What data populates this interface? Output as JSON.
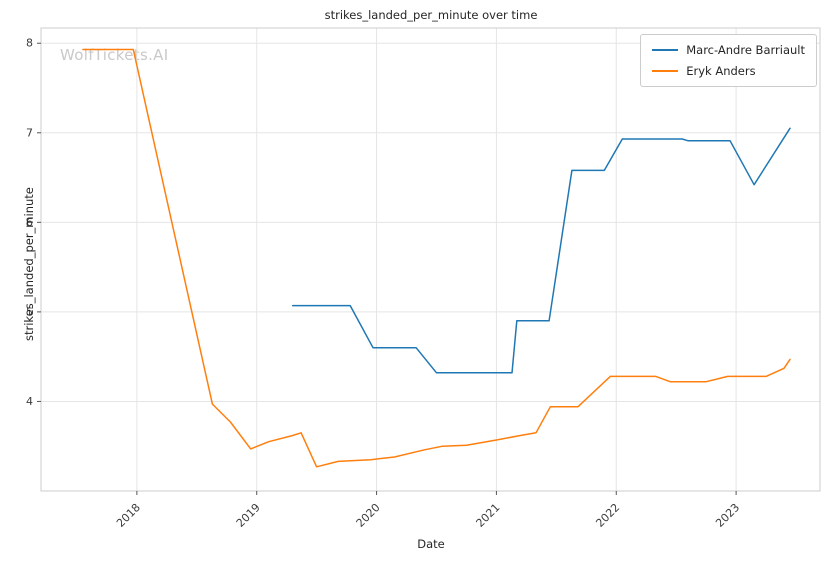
{
  "watermark": "WolfTickets.AI",
  "colors": {
    "grid": "#e5e5e5",
    "spine": "#cccccc",
    "tick": "#555555",
    "tick_label": "#3b3b3b"
  },
  "chart_data": {
    "type": "line",
    "title": "strikes_landed_per_minute over time",
    "xlabel": "Date",
    "ylabel": "strikes_landed_per_minute",
    "grid": true,
    "legend_position": "upper right",
    "xlim": [
      2017.2,
      2023.7
    ],
    "ylim": [
      3.0,
      8.17
    ],
    "xticks": [
      {
        "value": 2018,
        "label": "2018"
      },
      {
        "value": 2019,
        "label": "2019"
      },
      {
        "value": 2020,
        "label": "2020"
      },
      {
        "value": 2021,
        "label": "2021"
      },
      {
        "value": 2022,
        "label": "2022"
      },
      {
        "value": 2023,
        "label": "2023"
      }
    ],
    "yticks": [
      {
        "value": 4,
        "label": "4"
      },
      {
        "value": 5,
        "label": "5"
      },
      {
        "value": 6,
        "label": "6"
      },
      {
        "value": 7,
        "label": "7"
      },
      {
        "value": 8,
        "label": "8"
      }
    ],
    "series": [
      {
        "name": "Marc-Andre Barriault",
        "color": "#1f77b4",
        "points": [
          [
            2019.3,
            5.07
          ],
          [
            2019.78,
            5.07
          ],
          [
            2019.97,
            4.6
          ],
          [
            2020.33,
            4.6
          ],
          [
            2020.5,
            4.32
          ],
          [
            2021.13,
            4.32
          ],
          [
            2021.17,
            4.9
          ],
          [
            2021.44,
            4.9
          ],
          [
            2021.63,
            6.58
          ],
          [
            2021.9,
            6.58
          ],
          [
            2022.05,
            6.93
          ],
          [
            2022.55,
            6.93
          ],
          [
            2022.6,
            6.91
          ],
          [
            2022.95,
            6.91
          ],
          [
            2023.15,
            6.42
          ],
          [
            2023.45,
            7.05
          ]
        ]
      },
      {
        "name": "Eryk Anders",
        "color": "#ff7f0e",
        "points": [
          [
            2017.55,
            7.93
          ],
          [
            2017.97,
            7.93
          ],
          [
            2018.63,
            3.97
          ],
          [
            2018.78,
            3.77
          ],
          [
            2018.95,
            3.47
          ],
          [
            2019.1,
            3.55
          ],
          [
            2019.3,
            3.62
          ],
          [
            2019.37,
            3.65
          ],
          [
            2019.5,
            3.27
          ],
          [
            2019.68,
            3.33
          ],
          [
            2019.95,
            3.35
          ],
          [
            2020.15,
            3.38
          ],
          [
            2020.4,
            3.46
          ],
          [
            2020.55,
            3.5
          ],
          [
            2020.75,
            3.51
          ],
          [
            2021.0,
            3.57
          ],
          [
            2021.2,
            3.62
          ],
          [
            2021.33,
            3.65
          ],
          [
            2021.45,
            3.94
          ],
          [
            2021.68,
            3.94
          ],
          [
            2021.95,
            4.28
          ],
          [
            2022.33,
            4.28
          ],
          [
            2022.45,
            4.22
          ],
          [
            2022.75,
            4.22
          ],
          [
            2022.93,
            4.28
          ],
          [
            2023.25,
            4.28
          ],
          [
            2023.4,
            4.37
          ],
          [
            2023.45,
            4.47
          ]
        ]
      }
    ]
  }
}
